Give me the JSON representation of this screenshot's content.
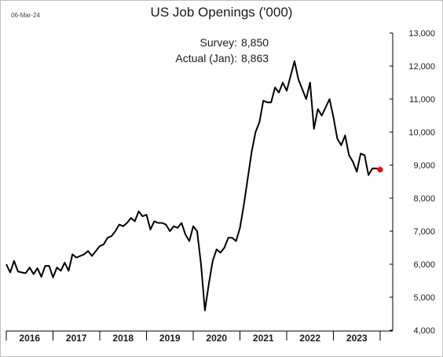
{
  "date_stamp": "06-Mar-24",
  "annotations": {
    "survey_label": "Survey:",
    "survey_value": "8,850",
    "actual_label": "Actual (Jan):",
    "actual_value": "8,863"
  },
  "colors": {
    "line": "#000000",
    "marker": "#ff0000",
    "axis": "#000000"
  },
  "chart_data": {
    "type": "line",
    "title": "US Job Openings ('000)",
    "xlabel": "",
    "ylabel": "",
    "ylim": [
      4000,
      13000
    ],
    "y_ticks": [
      4000,
      5000,
      6000,
      7000,
      8000,
      9000,
      10000,
      11000,
      12000,
      13000
    ],
    "y_tick_labels": [
      "4,000",
      "5,000",
      "6,000",
      "7,000",
      "8,000",
      "9,000",
      "10,000",
      "11,000",
      "12,000",
      "13,000"
    ],
    "x_tick_labels": [
      "2016",
      "2017",
      "2018",
      "2019",
      "2020",
      "2021",
      "2022",
      "2023"
    ],
    "x_start": "2016-01",
    "x_end": "2024-01",
    "grid": false,
    "series": [
      {
        "values": [
          6000,
          5750,
          6100,
          5780,
          5750,
          5730,
          5900,
          5700,
          5880,
          5620,
          5950,
          5950,
          5600,
          5900,
          5800,
          6050,
          5800,
          6300,
          6200,
          6250,
          6300,
          6400,
          6250,
          6400,
          6550,
          6600,
          6800,
          6850,
          7000,
          7200,
          7150,
          7250,
          7400,
          7300,
          7600,
          7450,
          7500,
          7050,
          7300,
          7250,
          7250,
          7200,
          7000,
          7150,
          7100,
          7250,
          6900,
          6700,
          7150,
          7000,
          6000,
          4600,
          5400,
          6100,
          6450,
          6350,
          6500,
          6800,
          6800,
          6700,
          7100,
          7800,
          8600,
          9400,
          10000,
          10300,
          10950,
          10900,
          10900,
          11350,
          11200,
          11500,
          11250,
          11700,
          12150,
          11600,
          11300,
          11000,
          11500,
          10100,
          10700,
          10500,
          10750,
          11000,
          10450,
          9800,
          9600,
          9900,
          9300,
          9100,
          8800,
          9350,
          9300,
          8700,
          8900,
          8900,
          8863
        ],
        "highlight_last": true
      }
    ]
  }
}
